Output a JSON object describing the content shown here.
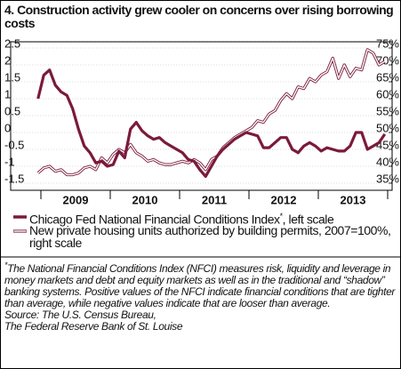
{
  "chart_data": {
    "type": "line",
    "title": "4. Construction activity grew cooler on concerns over rising borrowing costs",
    "categories": [
      null,
      null,
      null,
      null,
      null,
      null,
      null,
      "2009",
      null,
      null,
      null,
      null,
      null,
      null,
      null,
      null,
      null,
      null,
      null,
      "2010",
      null,
      null,
      null,
      null,
      null,
      null,
      null,
      null,
      null,
      null,
      null,
      "2011",
      null,
      null,
      null,
      null,
      null,
      null,
      null,
      null,
      null,
      null,
      null,
      "2012",
      null,
      null,
      null,
      null,
      null,
      null,
      null,
      null,
      null,
      null,
      null,
      "2013",
      null,
      null,
      null,
      null,
      null
    ],
    "series": [
      {
        "name": "Chicago Fed National Financial Conditions Index",
        "axis_note": ", left scale",
        "color": "#7a1a3c",
        "axis": "y",
        "values": [
          1.0,
          1.7,
          1.85,
          1.4,
          1.2,
          1.1,
          0.7,
          0.1,
          -0.4,
          -0.6,
          -0.9,
          -0.85,
          -1.0,
          -0.95,
          -0.55,
          -0.75,
          0.1,
          0.3,
          0.05,
          -0.1,
          -0.2,
          -0.15,
          -0.3,
          -0.4,
          -0.5,
          -0.6,
          -0.8,
          -0.85,
          -1.1,
          -1.3,
          -1.0,
          -0.7,
          -0.5,
          -0.35,
          -0.2,
          -0.1,
          0.0,
          -0.05,
          -0.1,
          -0.45,
          -0.45,
          -0.3,
          -0.15,
          -0.15,
          -0.5,
          -0.6,
          -0.4,
          -0.3,
          -0.4,
          -0.55,
          -0.45,
          -0.5,
          -0.55,
          -0.55,
          -0.4,
          0.0,
          0.0,
          -0.5,
          -0.4,
          -0.3,
          -0.05
        ]
      },
      {
        "name": "New private housing units authorized by building permits, 2007=100%",
        "axis_note": ", right scale",
        "color": "#7a1a3c",
        "axis": "y2",
        "values": [
          38,
          39.5,
          40,
          38.5,
          39,
          37.5,
          37.5,
          38,
          39.5,
          40,
          39,
          42.5,
          41,
          43.5,
          45,
          44,
          46.5,
          44,
          43,
          41.5,
          42,
          41,
          40.5,
          40.5,
          41,
          41.5,
          41,
          42,
          41,
          39,
          42,
          43,
          45.5,
          47,
          48.5,
          49.5,
          50.5,
          51.5,
          53.5,
          53,
          55.5,
          56.5,
          59.5,
          61.5,
          60,
          63.5,
          63,
          66,
          65,
          67,
          68,
          72,
          66,
          70,
          66.5,
          69,
          68.5,
          74.5,
          73.5,
          70,
          71
        ]
      }
    ],
    "ylim": [
      -1.5,
      2.5
    ],
    "yticks": [
      -1.5,
      -1,
      -0.5,
      0,
      0.5,
      1,
      1.5,
      2,
      2.5
    ],
    "y2lim": [
      35,
      75
    ],
    "y2ticks": [
      {
        "value": 35,
        "label": "35%"
      },
      {
        "value": 40,
        "label": "40%"
      },
      {
        "value": 45,
        "label": "45%"
      },
      {
        "value": 50,
        "label": "50%"
      },
      {
        "value": 55,
        "label": "55%"
      },
      {
        "value": 60,
        "label": "60%"
      },
      {
        "value": 65,
        "label": "65%"
      },
      {
        "value": 70,
        "label": "70%"
      },
      {
        "value": 75,
        "label": "75%"
      }
    ],
    "grid": true,
    "footnote": {
      "marker": "*",
      "text": "The National Financial Conditions Index (NFCI) measures risk, liquidity and leverage in money markets and debt and equity markets as well as in the traditional and “shadow” banking systems. Positive values of the NFCI indicate financial conditions that are tighter than average, while negative values indicate that are looser than average."
    },
    "sources": [
      "Source: The U.S. Census Bureau,",
      "The Federal Reserve Bank of St. Louise"
    ]
  }
}
